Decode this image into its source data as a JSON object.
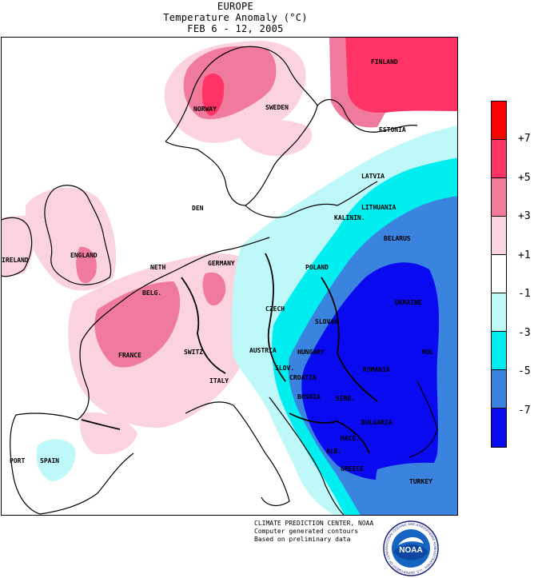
{
  "title": {
    "line1": "EUROPE",
    "line2": "Temperature Anomaly (°C)",
    "line3": "FEB 6 - 12, 2005"
  },
  "legend": {
    "colors": [
      "#ff0000",
      "#ff3366",
      "#f07a9c",
      "#fbd3df",
      "#ffffff",
      "#bff8f8",
      "#00eef0",
      "#3a84e0",
      "#0a0af0"
    ],
    "labels": [
      "+7",
      "+5",
      "+3",
      "+1",
      "-1",
      "-3",
      "-5",
      "-7"
    ]
  },
  "countries": [
    "FINLAND",
    "NORWAY",
    "SWEDEN",
    "ESTONIA",
    "LATVIA",
    "LITHUANIA",
    "KALININ.",
    "BELARUS",
    "DEN",
    "ENGLAND",
    "IRELAND",
    "NETH",
    "BELG.",
    "GERMANY",
    "POLAND",
    "CZECH",
    "SLOVAK",
    "UKRAINE",
    "AUSTRIA",
    "HUNGARY",
    "MOL",
    "SWITZ.",
    "FRANCE",
    "SLOV.",
    "CROATIA",
    "ROMANIA",
    "ITALY",
    "BOSNIA",
    "SERB.",
    "BULGARIA",
    "MACE.",
    "ALB.",
    "GREECE",
    "SPAIN",
    "PORT",
    "TURKEY"
  ],
  "credits": {
    "line1": "CLIMATE PREDICTION CENTER, NOAA",
    "line2": "Computer generated contours",
    "line3": "Based on preliminary data"
  },
  "logo": {
    "text": "NOAA",
    "ring_text": "NATIONAL OCEANIC AND ATMOSPHERIC ADMINISTRATION · U.S. DEPARTMENT OF COMMERCE"
  }
}
